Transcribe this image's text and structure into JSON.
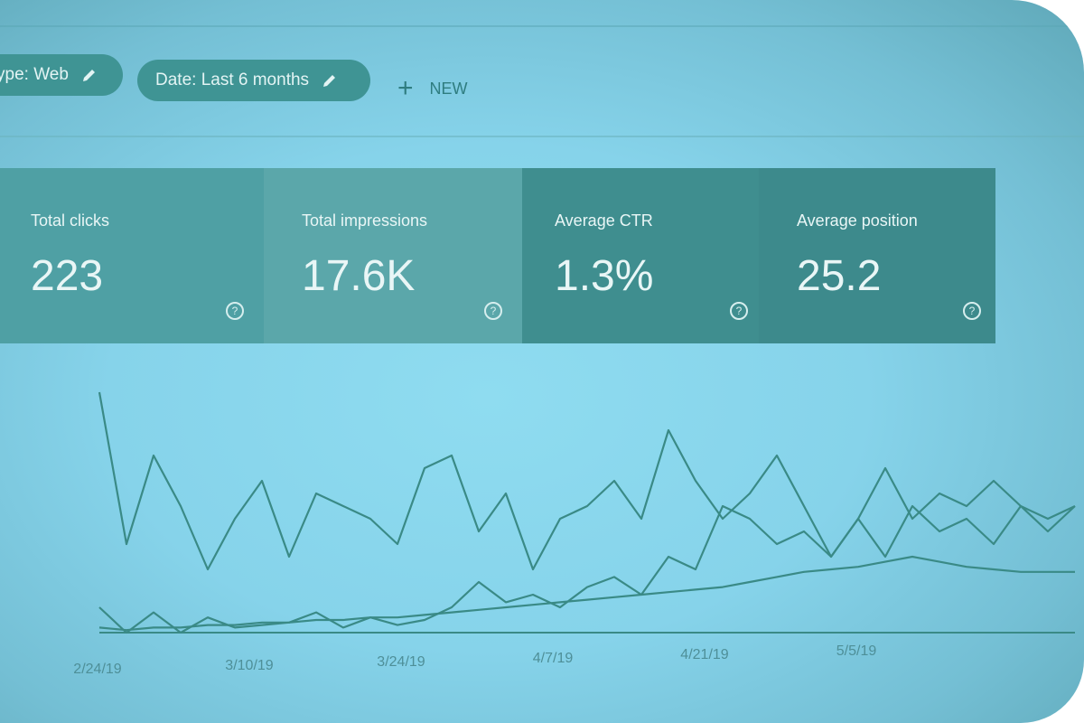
{
  "filters": {
    "type_chip": "ype: Web",
    "date_chip": "Date: Last 6 months",
    "new_label": "NEW",
    "edit_icon": "pencil-icon",
    "plus_icon": "plus-icon"
  },
  "metrics": [
    {
      "label": "Total clicks",
      "value": "223"
    },
    {
      "label": "Total impressions",
      "value": "17.6K"
    },
    {
      "label": "Average CTR",
      "value": "1.3%"
    },
    {
      "label": "Average position",
      "value": "25.2"
    }
  ],
  "help_icon": "question-mark-icon",
  "colors": {
    "screen": "#86d3ea",
    "chip": "#3f9494",
    "card_light": "#5ba7aa",
    "card_dark": "#3d8a8c",
    "line": "#3a8a86"
  },
  "chart_data": {
    "type": "line",
    "x_tick_labels": [
      "2/24/19",
      "3/10/19",
      "3/24/19",
      "4/7/19",
      "4/21/19",
      "5/5/19"
    ],
    "series": [
      {
        "values": [
          0.95,
          0.35,
          0.7,
          0.5,
          0.25,
          0.45,
          0.6,
          0.3,
          0.55,
          0.5,
          0.45,
          0.35,
          0.65,
          0.7,
          0.4,
          0.55,
          0.25,
          0.45,
          0.5,
          0.6,
          0.45,
          0.8,
          0.6,
          0.45,
          0.55,
          0.7,
          0.5,
          0.3,
          0.45,
          0.65,
          0.45,
          0.55,
          0.5,
          0.6,
          0.5,
          0.4,
          0.5
        ]
      },
      {
        "values": [
          0.1,
          0.0,
          0.08,
          0.0,
          0.06,
          0.02,
          0.03,
          0.04,
          0.08,
          0.02,
          0.06,
          0.03,
          0.05,
          0.1,
          0.2,
          0.12,
          0.15,
          0.1,
          0.18,
          0.22,
          0.15,
          0.3,
          0.25,
          0.5,
          0.45,
          0.35,
          0.4,
          0.3,
          0.45,
          0.3,
          0.5,
          0.4,
          0.45,
          0.35,
          0.5,
          0.45,
          0.5
        ]
      },
      {
        "values": [
          0.02,
          0.01,
          0.02,
          0.02,
          0.03,
          0.03,
          0.04,
          0.04,
          0.05,
          0.05,
          0.06,
          0.06,
          0.07,
          0.08,
          0.09,
          0.1,
          0.11,
          0.12,
          0.13,
          0.14,
          0.15,
          0.16,
          0.17,
          0.18,
          0.2,
          0.22,
          0.24,
          0.25,
          0.26,
          0.28,
          0.3,
          0.28,
          0.26,
          0.25,
          0.24,
          0.24,
          0.24
        ]
      }
    ]
  }
}
